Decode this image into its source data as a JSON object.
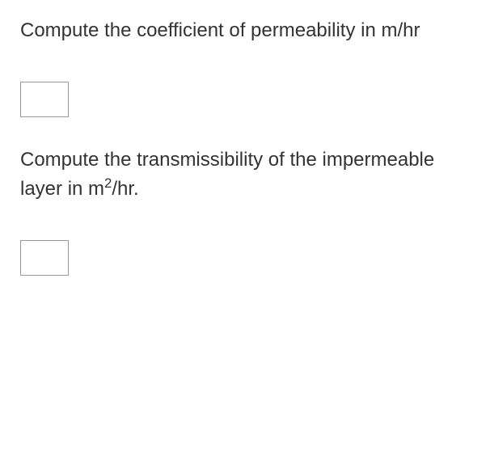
{
  "questions": [
    {
      "text_before": "Compute the coefficient of permeability in m/hr",
      "text_after": "",
      "has_superscript": false,
      "input_value": ""
    },
    {
      "text_before": "Compute the transmissibility of the impermeable layer in m",
      "superscript": "2",
      "text_after": "/hr.",
      "has_superscript": true,
      "input_value": ""
    }
  ],
  "styles": {
    "font_size": 24,
    "text_color": "#333333",
    "background_color": "#ffffff",
    "input_border_color": "#999999",
    "input_width": 60,
    "input_height": 44
  }
}
